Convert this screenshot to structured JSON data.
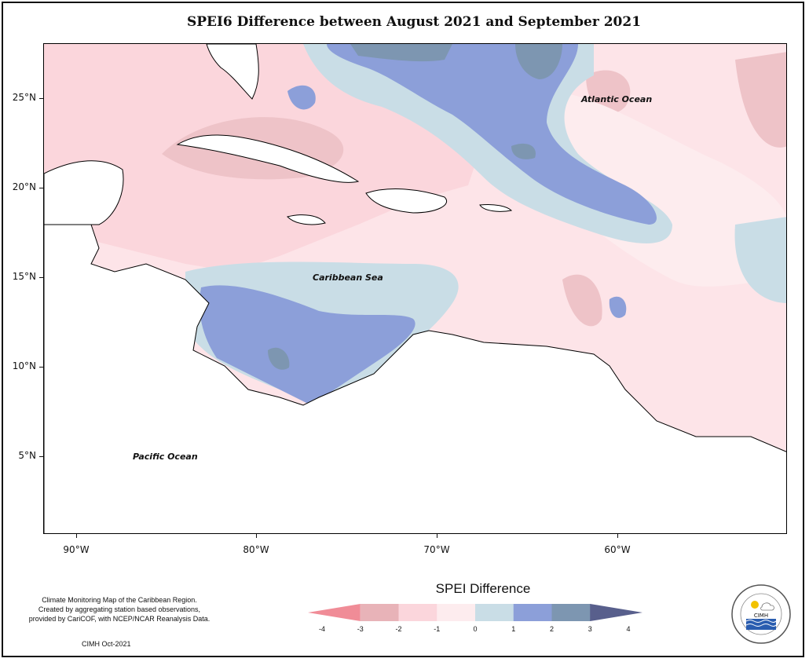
{
  "title": "SPEI6 Difference between August 2021 and September 2021",
  "map": {
    "labels": {
      "atlantic": "Atlantic Ocean",
      "caribbean": "Caribbean Sea",
      "pacific": "Pacific Ocean"
    },
    "lat_ticks": [
      "25°N",
      "20°N",
      "15°N",
      "10°N",
      "5°N"
    ],
    "lon_ticks": [
      "90°W",
      "80°W",
      "70°W",
      "60°W"
    ]
  },
  "notes": {
    "line1": "Climate Monitoring Map of the Caribbean Region.",
    "line2": "Created by aggregating station based observations,",
    "line3": "provided by CariCOF, with NCEP/NCAR Reanalysis Data.",
    "credit": "CIMH Oct-2021"
  },
  "legend": {
    "title": "SPEI Difference",
    "labels": [
      "-4",
      "-3",
      "-2",
      "-1",
      "0",
      "1",
      "2",
      "3",
      "4"
    ],
    "colors": [
      "#f08c97",
      "#e8b3b8",
      "#fbd6dc",
      "#fdecee",
      "#c9dde6",
      "#8c9fd9",
      "#7d96b1",
      "#585f8c"
    ]
  },
  "logo": {
    "arc_text": "Caribbean Institute for Meteorology and Hydrology",
    "abbr": "CIMH"
  },
  "colors": {
    "strong_dry": "#e8b3b8",
    "dry": "#fbd6dc",
    "neutral": "#fde4e8",
    "mild_wet": "#c9dde6",
    "wet": "#8c9fd9",
    "very_wet": "#7d96b1"
  }
}
